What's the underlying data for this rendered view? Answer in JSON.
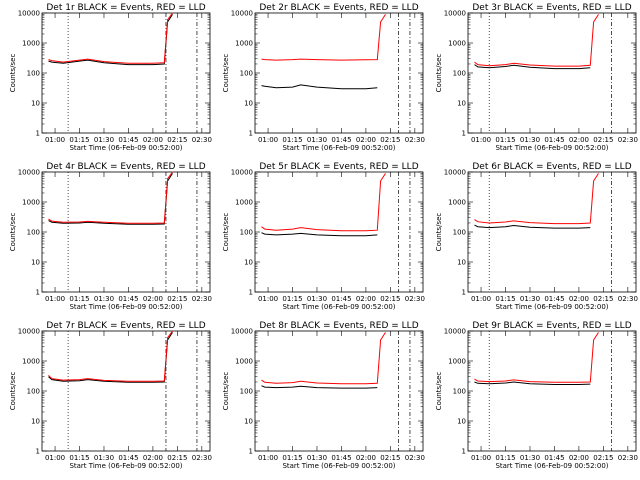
{
  "figure": {
    "shared_x_label": "Start Time (06-Feb-09 00:52:00)",
    "shared_y_label": "Counts/sec",
    "y_scale": "log",
    "x_tick_labels": [
      "01:00",
      "01:15",
      "01:30",
      "01:45",
      "02:00",
      "02:15",
      "02:30"
    ],
    "colors": {
      "events": "#000000",
      "lld": "#ff0000",
      "axes": "#000000"
    }
  },
  "chart_data": [
    {
      "type": "line",
      "title": "Det 1r BLACK = Events, RED = LLD",
      "xlabel": "Start Time (06-Feb-09 00:52:00)",
      "ylabel": "Counts/sec",
      "x_ticks": [
        "01:00",
        "01:15",
        "01:30",
        "01:45",
        "02:00",
        "02:15",
        "02:30"
      ],
      "y_ticks": [
        "1",
        "10",
        "100",
        "1000",
        "10000"
      ],
      "yscale": "log",
      "ylim": [
        1,
        10000
      ],
      "series": [
        {
          "name": "Events",
          "color": "#000000",
          "x": [
            "00:56",
            "00:58",
            "01:05",
            "01:15",
            "01:20",
            "01:30",
            "01:45",
            "02:00",
            "02:07",
            "02:09",
            "02:12"
          ],
          "y": [
            250,
            230,
            210,
            250,
            270,
            220,
            190,
            190,
            200,
            5000,
            9000
          ]
        },
        {
          "name": "LLD",
          "color": "#ff0000",
          "x": [
            "00:56",
            "00:58",
            "01:05",
            "01:15",
            "01:20",
            "01:30",
            "01:45",
            "02:00",
            "02:07",
            "02:09",
            "02:12"
          ],
          "y": [
            280,
            260,
            230,
            270,
            290,
            240,
            210,
            210,
            220,
            6000,
            10000
          ]
        }
      ],
      "vlines": {
        "dotted": [
          "01:08"
        ],
        "dashdot": [
          "02:08",
          "02:27"
        ]
      }
    },
    {
      "type": "line",
      "title": "Det 2r BLACK = Events, RED = LLD",
      "xlabel": "Start Time (06-Feb-09 00:52:00)",
      "ylabel": "Counts/sec",
      "x_ticks": [
        "01:00",
        "01:15",
        "01:30",
        "01:45",
        "02:00",
        "02:15",
        "02:30"
      ],
      "y_ticks": [
        "1",
        "10",
        "100",
        "1000",
        "10000"
      ],
      "yscale": "log",
      "ylim": [
        1,
        10000
      ],
      "series": [
        {
          "name": "Events",
          "color": "#000000",
          "x": [
            "00:56",
            "00:58",
            "01:05",
            "01:15",
            "01:20",
            "01:30",
            "01:45",
            "02:00",
            "02:07"
          ],
          "y": [
            38,
            36,
            32,
            34,
            40,
            34,
            30,
            30,
            32
          ]
        },
        {
          "name": "LLD",
          "color": "#ff0000",
          "x": [
            "00:56",
            "00:58",
            "01:05",
            "01:15",
            "01:20",
            "01:30",
            "01:45",
            "02:00",
            "02:07",
            "02:09",
            "02:12"
          ],
          "y": [
            290,
            280,
            270,
            280,
            290,
            280,
            270,
            275,
            280,
            5000,
            9000
          ]
        }
      ],
      "vlines": {
        "dotted": [],
        "dashdot": [
          "02:20",
          "02:27"
        ]
      }
    },
    {
      "type": "line",
      "title": "Det 3r BLACK = Events, RED = LLD",
      "xlabel": "Start Time (06-Feb-09 00:52:00)",
      "ylabel": "Counts/sec",
      "x_ticks": [
        "01:00",
        "01:15",
        "01:30",
        "01:45",
        "02:00",
        "02:15",
        "02:30"
      ],
      "y_ticks": [
        "1",
        "10",
        "100",
        "1000",
        "10000"
      ],
      "yscale": "log",
      "ylim": [
        1,
        10000
      ],
      "series": [
        {
          "name": "Events",
          "color": "#000000",
          "x": [
            "00:56",
            "00:58",
            "01:05",
            "01:15",
            "01:20",
            "01:30",
            "01:45",
            "02:00",
            "02:07"
          ],
          "y": [
            190,
            160,
            150,
            165,
            180,
            155,
            140,
            140,
            150
          ]
        },
        {
          "name": "LLD",
          "color": "#ff0000",
          "x": [
            "00:56",
            "00:58",
            "01:05",
            "01:15",
            "01:20",
            "01:30",
            "01:45",
            "02:00",
            "02:07",
            "02:09",
            "02:12"
          ],
          "y": [
            230,
            190,
            175,
            190,
            210,
            185,
            170,
            170,
            180,
            5000,
            9000
          ]
        }
      ],
      "vlines": {
        "dotted": [
          "01:05"
        ],
        "dashdot": [
          "02:20"
        ]
      }
    },
    {
      "type": "line",
      "title": "Det 4r BLACK = Events, RED = LLD",
      "xlabel": "Start Time (06-Feb-09 00:52:00)",
      "ylabel": "Counts/sec",
      "x_ticks": [
        "01:00",
        "01:15",
        "01:30",
        "01:45",
        "02:00",
        "02:15",
        "02:30"
      ],
      "y_ticks": [
        "1",
        "10",
        "100",
        "1000",
        "10000"
      ],
      "yscale": "log",
      "ylim": [
        1,
        10000
      ],
      "series": [
        {
          "name": "Events",
          "color": "#000000",
          "x": [
            "00:56",
            "00:58",
            "01:05",
            "01:15",
            "01:20",
            "01:30",
            "01:45",
            "02:00",
            "02:07",
            "02:09",
            "02:12"
          ],
          "y": [
            240,
            210,
            195,
            200,
            210,
            195,
            180,
            180,
            185,
            5000,
            9000
          ]
        },
        {
          "name": "LLD",
          "color": "#ff0000",
          "x": [
            "00:56",
            "00:58",
            "01:05",
            "01:15",
            "01:20",
            "01:30",
            "01:45",
            "02:00",
            "02:07",
            "02:09",
            "02:12"
          ],
          "y": [
            270,
            230,
            210,
            215,
            225,
            210,
            195,
            195,
            200,
            6000,
            10000
          ]
        }
      ],
      "vlines": {
        "dotted": [
          "01:08"
        ],
        "dashdot": [
          "02:08",
          "02:27"
        ]
      }
    },
    {
      "type": "line",
      "title": "Det 5r BLACK = Events, RED = LLD",
      "xlabel": "Start Time (06-Feb-09 00:52:00)",
      "ylabel": "Counts/sec",
      "x_ticks": [
        "01:00",
        "01:15",
        "01:30",
        "01:45",
        "02:00",
        "02:15",
        "02:30"
      ],
      "y_ticks": [
        "1",
        "10",
        "100",
        "1000",
        "10000"
      ],
      "yscale": "log",
      "ylim": [
        1,
        10000
      ],
      "series": [
        {
          "name": "Events",
          "color": "#000000",
          "x": [
            "00:56",
            "00:58",
            "01:05",
            "01:15",
            "01:20",
            "01:30",
            "01:45",
            "02:00",
            "02:07"
          ],
          "y": [
            95,
            85,
            80,
            85,
            90,
            80,
            75,
            75,
            80
          ]
        },
        {
          "name": "LLD",
          "color": "#ff0000",
          "x": [
            "00:56",
            "00:58",
            "01:05",
            "01:15",
            "01:20",
            "01:30",
            "01:45",
            "02:00",
            "02:07",
            "02:09",
            "02:12"
          ],
          "y": [
            150,
            125,
            115,
            125,
            140,
            120,
            110,
            110,
            115,
            5000,
            9000
          ]
        }
      ],
      "vlines": {
        "dotted": [],
        "dashdot": [
          "02:20",
          "02:27"
        ]
      }
    },
    {
      "type": "line",
      "title": "Det 6r BLACK = Events, RED = LLD",
      "xlabel": "Start Time (06-Feb-09 00:52:00)",
      "ylabel": "Counts/sec",
      "x_ticks": [
        "01:00",
        "01:15",
        "01:30",
        "01:45",
        "02:00",
        "02:15",
        "02:30"
      ],
      "y_ticks": [
        "1",
        "10",
        "100",
        "1000",
        "10000"
      ],
      "yscale": "log",
      "ylim": [
        1,
        10000
      ],
      "series": [
        {
          "name": "Events",
          "color": "#000000",
          "x": [
            "00:56",
            "00:58",
            "01:05",
            "01:15",
            "01:20",
            "01:30",
            "01:45",
            "02:00",
            "02:07"
          ],
          "y": [
            170,
            150,
            140,
            150,
            165,
            145,
            135,
            135,
            140
          ]
        },
        {
          "name": "LLD",
          "color": "#ff0000",
          "x": [
            "00:56",
            "00:58",
            "01:05",
            "01:15",
            "01:20",
            "01:30",
            "01:45",
            "02:00",
            "02:07",
            "02:09",
            "02:12"
          ],
          "y": [
            260,
            220,
            200,
            215,
            235,
            205,
            190,
            190,
            200,
            5000,
            9000
          ]
        }
      ],
      "vlines": {
        "dotted": [
          "01:05"
        ],
        "dashdot": [
          "02:20"
        ]
      }
    },
    {
      "type": "line",
      "title": "Det 7r BLACK = Events, RED = LLD",
      "xlabel": "Start Time (06-Feb-09 00:52:00)",
      "ylabel": "Counts/sec",
      "x_ticks": [
        "01:00",
        "01:15",
        "01:30",
        "01:45",
        "02:00",
        "02:15",
        "02:30"
      ],
      "y_ticks": [
        "1",
        "10",
        "100",
        "1000",
        "10000"
      ],
      "yscale": "log",
      "ylim": [
        1,
        10000
      ],
      "series": [
        {
          "name": "Events",
          "color": "#000000",
          "x": [
            "00:56",
            "00:58",
            "01:05",
            "01:15",
            "01:20",
            "01:30",
            "01:45",
            "02:00",
            "02:07",
            "02:09",
            "02:12"
          ],
          "y": [
            300,
            240,
            210,
            220,
            240,
            210,
            195,
            195,
            200,
            5000,
            9000
          ]
        },
        {
          "name": "LLD",
          "color": "#ff0000",
          "x": [
            "00:56",
            "00:58",
            "01:05",
            "01:15",
            "01:20",
            "01:30",
            "01:45",
            "02:00",
            "02:07",
            "02:09",
            "02:12"
          ],
          "y": [
            330,
            260,
            230,
            240,
            260,
            225,
            210,
            210,
            215,
            6000,
            10000
          ]
        }
      ],
      "vlines": {
        "dotted": [
          "01:08"
        ],
        "dashdot": [
          "02:08",
          "02:27"
        ]
      }
    },
    {
      "type": "line",
      "title": "Det 8r BLACK = Events, RED = LLD",
      "xlabel": "Start Time (06-Feb-09 00:52:00)",
      "ylabel": "Counts/sec",
      "x_ticks": [
        "01:00",
        "01:15",
        "01:30",
        "01:45",
        "02:00",
        "02:15",
        "02:30"
      ],
      "y_ticks": [
        "1",
        "10",
        "100",
        "1000",
        "10000"
      ],
      "yscale": "log",
      "ylim": [
        1,
        10000
      ],
      "series": [
        {
          "name": "Events",
          "color": "#000000",
          "x": [
            "00:56",
            "00:58",
            "01:05",
            "01:15",
            "01:20",
            "01:30",
            "01:45",
            "02:00",
            "02:07"
          ],
          "y": [
            150,
            135,
            130,
            135,
            145,
            130,
            125,
            125,
            130
          ]
        },
        {
          "name": "LLD",
          "color": "#ff0000",
          "x": [
            "00:56",
            "00:58",
            "01:05",
            "01:15",
            "01:20",
            "01:30",
            "01:45",
            "02:00",
            "02:07",
            "02:09",
            "02:12"
          ],
          "y": [
            230,
            195,
            180,
            190,
            210,
            185,
            175,
            175,
            180,
            5000,
            9000
          ]
        }
      ],
      "vlines": {
        "dotted": [],
        "dashdot": [
          "02:20",
          "02:27"
        ]
      }
    },
    {
      "type": "line",
      "title": "Det 9r BLACK = Events, RED = LLD",
      "xlabel": "Start Time (06-Feb-09 00:52:00)",
      "ylabel": "Counts/sec",
      "x_ticks": [
        "01:00",
        "01:15",
        "01:30",
        "01:45",
        "02:00",
        "02:15",
        "02:30"
      ],
      "y_ticks": [
        "1",
        "10",
        "100",
        "1000",
        "10000"
      ],
      "yscale": "log",
      "ylim": [
        1,
        10000
      ],
      "series": [
        {
          "name": "Events",
          "color": "#000000",
          "x": [
            "00:56",
            "00:58",
            "01:05",
            "01:15",
            "01:20",
            "01:30",
            "01:45",
            "02:00",
            "02:07"
          ],
          "y": [
            200,
            180,
            175,
            185,
            200,
            175,
            165,
            165,
            170
          ]
        },
        {
          "name": "LLD",
          "color": "#ff0000",
          "x": [
            "00:56",
            "00:58",
            "01:05",
            "01:15",
            "01:20",
            "01:30",
            "01:45",
            "02:00",
            "02:07",
            "02:09",
            "02:12"
          ],
          "y": [
            250,
            215,
            205,
            215,
            235,
            205,
            195,
            195,
            200,
            5000,
            9000
          ]
        }
      ],
      "vlines": {
        "dotted": [
          "01:05"
        ],
        "dashdot": [
          "02:20"
        ]
      }
    }
  ]
}
